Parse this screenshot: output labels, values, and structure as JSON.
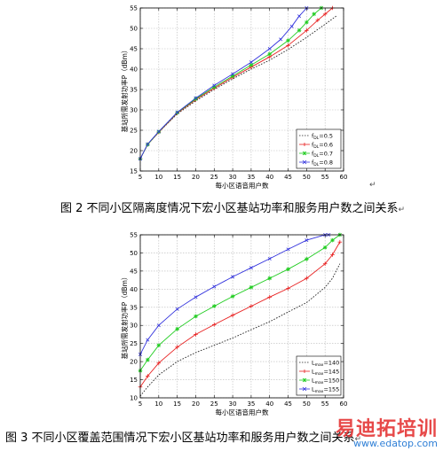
{
  "figures": [
    {
      "caption": "图 2   不同小区隔离度情况下宏小区基站功率和服务用户数之间关系",
      "caption_mark": "↵",
      "after_mark": "↵",
      "chart_data": {
        "type": "line",
        "xlabel": "每小区语音用户数",
        "ylabel": "基站所需发射功率P（dBm）",
        "xlim": [
          5,
          60
        ],
        "ylim": [
          15,
          55
        ],
        "xticks": [
          5,
          10,
          15,
          20,
          25,
          30,
          35,
          40,
          45,
          50,
          55,
          60
        ],
        "yticks": [
          15,
          20,
          25,
          30,
          35,
          40,
          45,
          50,
          55
        ],
        "grid": true,
        "legend_position": "lower-right",
        "series": [
          {
            "name": "fDL=0.5",
            "legend_main": "f",
            "legend_sub": "DL",
            "legend_value": "=0.5",
            "color": "#222222",
            "style": "dotted",
            "marker": "none",
            "x": [
              5,
              7,
              10,
              15,
              20,
              25,
              30,
              35,
              40,
              45,
              50,
              55,
              58
            ],
            "y": [
              18,
              21.5,
              24.5,
              29,
              32.2,
              35,
              37.6,
              40,
              42.2,
              44.8,
              47.8,
              51,
              53
            ]
          },
          {
            "name": "fDL=0.6",
            "legend_main": "f",
            "legend_sub": "DL",
            "legend_value": "=0.6",
            "color": "#e82020",
            "style": "solid",
            "marker": "plus",
            "x": [
              5,
              7,
              10,
              15,
              20,
              25,
              30,
              35,
              40,
              45,
              50,
              53,
              55,
              57
            ],
            "y": [
              18,
              21.5,
              24.5,
              29.2,
              32.5,
              35.3,
              38,
              40.5,
              43,
              45.8,
              49.5,
              52,
              53.5,
              55
            ]
          },
          {
            "name": "fDL=0.7",
            "legend_main": "f",
            "legend_sub": "DL",
            "legend_value": "=0.7",
            "color": "#1fcc1f",
            "style": "solid",
            "marker": "star",
            "x": [
              5,
              7,
              10,
              15,
              20,
              25,
              30,
              35,
              40,
              45,
              48,
              50,
              52,
              54
            ],
            "y": [
              18,
              21.5,
              24.6,
              29.3,
              32.7,
              35.6,
              38.3,
              41,
              43.7,
              47,
              49.5,
              51.5,
              53.5,
              55
            ]
          },
          {
            "name": "fDL=0.8",
            "legend_main": "f",
            "legend_sub": "DL",
            "legend_value": "=0.8",
            "color": "#3333dd",
            "style": "solid",
            "marker": "x",
            "x": [
              5,
              7,
              10,
              15,
              20,
              25,
              30,
              35,
              40,
              43,
              46,
              48,
              50
            ],
            "y": [
              18,
              21.6,
              24.7,
              29.4,
              32.9,
              36,
              38.8,
              41.7,
              45,
              47.3,
              50.5,
              53,
              55
            ]
          }
        ]
      }
    },
    {
      "caption": "图 3   不同小区覆盖范围情况下宏小区基站功率和服务用户数之间关系",
      "caption_mark": "↵",
      "chart_data": {
        "type": "line",
        "xlabel": "每小区语音用户数",
        "ylabel": "基站所需发射功率P（dBm）",
        "xlim": [
          5,
          60
        ],
        "ylim": [
          10,
          55
        ],
        "xticks": [
          5,
          10,
          15,
          20,
          25,
          30,
          35,
          40,
          45,
          50,
          55,
          60
        ],
        "yticks": [
          10,
          15,
          20,
          25,
          30,
          35,
          40,
          45,
          50,
          55
        ],
        "grid": true,
        "legend_position": "lower-right",
        "series": [
          {
            "name": "Lmax=140",
            "legend_main": "L",
            "legend_sub": "max",
            "legend_value": "=140",
            "color": "#222222",
            "style": "dotted",
            "marker": "none",
            "x": [
              5,
              7,
              10,
              15,
              20,
              25,
              30,
              35,
              40,
              45,
              50,
              55,
              57,
              59
            ],
            "y": [
              10.5,
              13,
              16.3,
              20,
              22.5,
              24.5,
              26.5,
              28.8,
              31,
              33.7,
              36.3,
              40.5,
              43,
              47
            ]
          },
          {
            "name": "Lmax=145",
            "legend_main": "L",
            "legend_sub": "max",
            "legend_value": "=145",
            "color": "#e82020",
            "style": "solid",
            "marker": "plus",
            "x": [
              5,
              7,
              10,
              15,
              20,
              25,
              30,
              35,
              40,
              45,
              50,
              55,
              57,
              59
            ],
            "y": [
              13,
              16,
              19.6,
              24,
              27.5,
              30.2,
              32.8,
              35.3,
              37.8,
              40.2,
              43,
              47,
              49.5,
              53
            ]
          },
          {
            "name": "Lmax=150",
            "legend_main": "L",
            "legend_sub": "max",
            "legend_value": "=150",
            "color": "#1fcc1f",
            "style": "solid",
            "marker": "star",
            "x": [
              5,
              7,
              10,
              15,
              20,
              25,
              30,
              35,
              40,
              45,
              50,
              55,
              57,
              59
            ],
            "y": [
              17.5,
              20.5,
              24.5,
              29,
              32.5,
              35.3,
              38,
              40.5,
              43,
              45.5,
              48.3,
              51.5,
              53.5,
              55
            ]
          },
          {
            "name": "Lmax=155",
            "legend_main": "L",
            "legend_sub": "max",
            "legend_value": "=155",
            "color": "#3333dd",
            "style": "solid",
            "marker": "x",
            "x": [
              5,
              7,
              10,
              15,
              20,
              25,
              30,
              35,
              40,
              45,
              50,
              55,
              56
            ],
            "y": [
              22,
              26,
              30,
              34.5,
              37.8,
              40.7,
              43.4,
              45.9,
              48.4,
              51,
              53.5,
              55,
              55
            ]
          }
        ]
      }
    }
  ],
  "watermark": {
    "cn": "易迪拓培训",
    "url": "www.edatop.com"
  }
}
